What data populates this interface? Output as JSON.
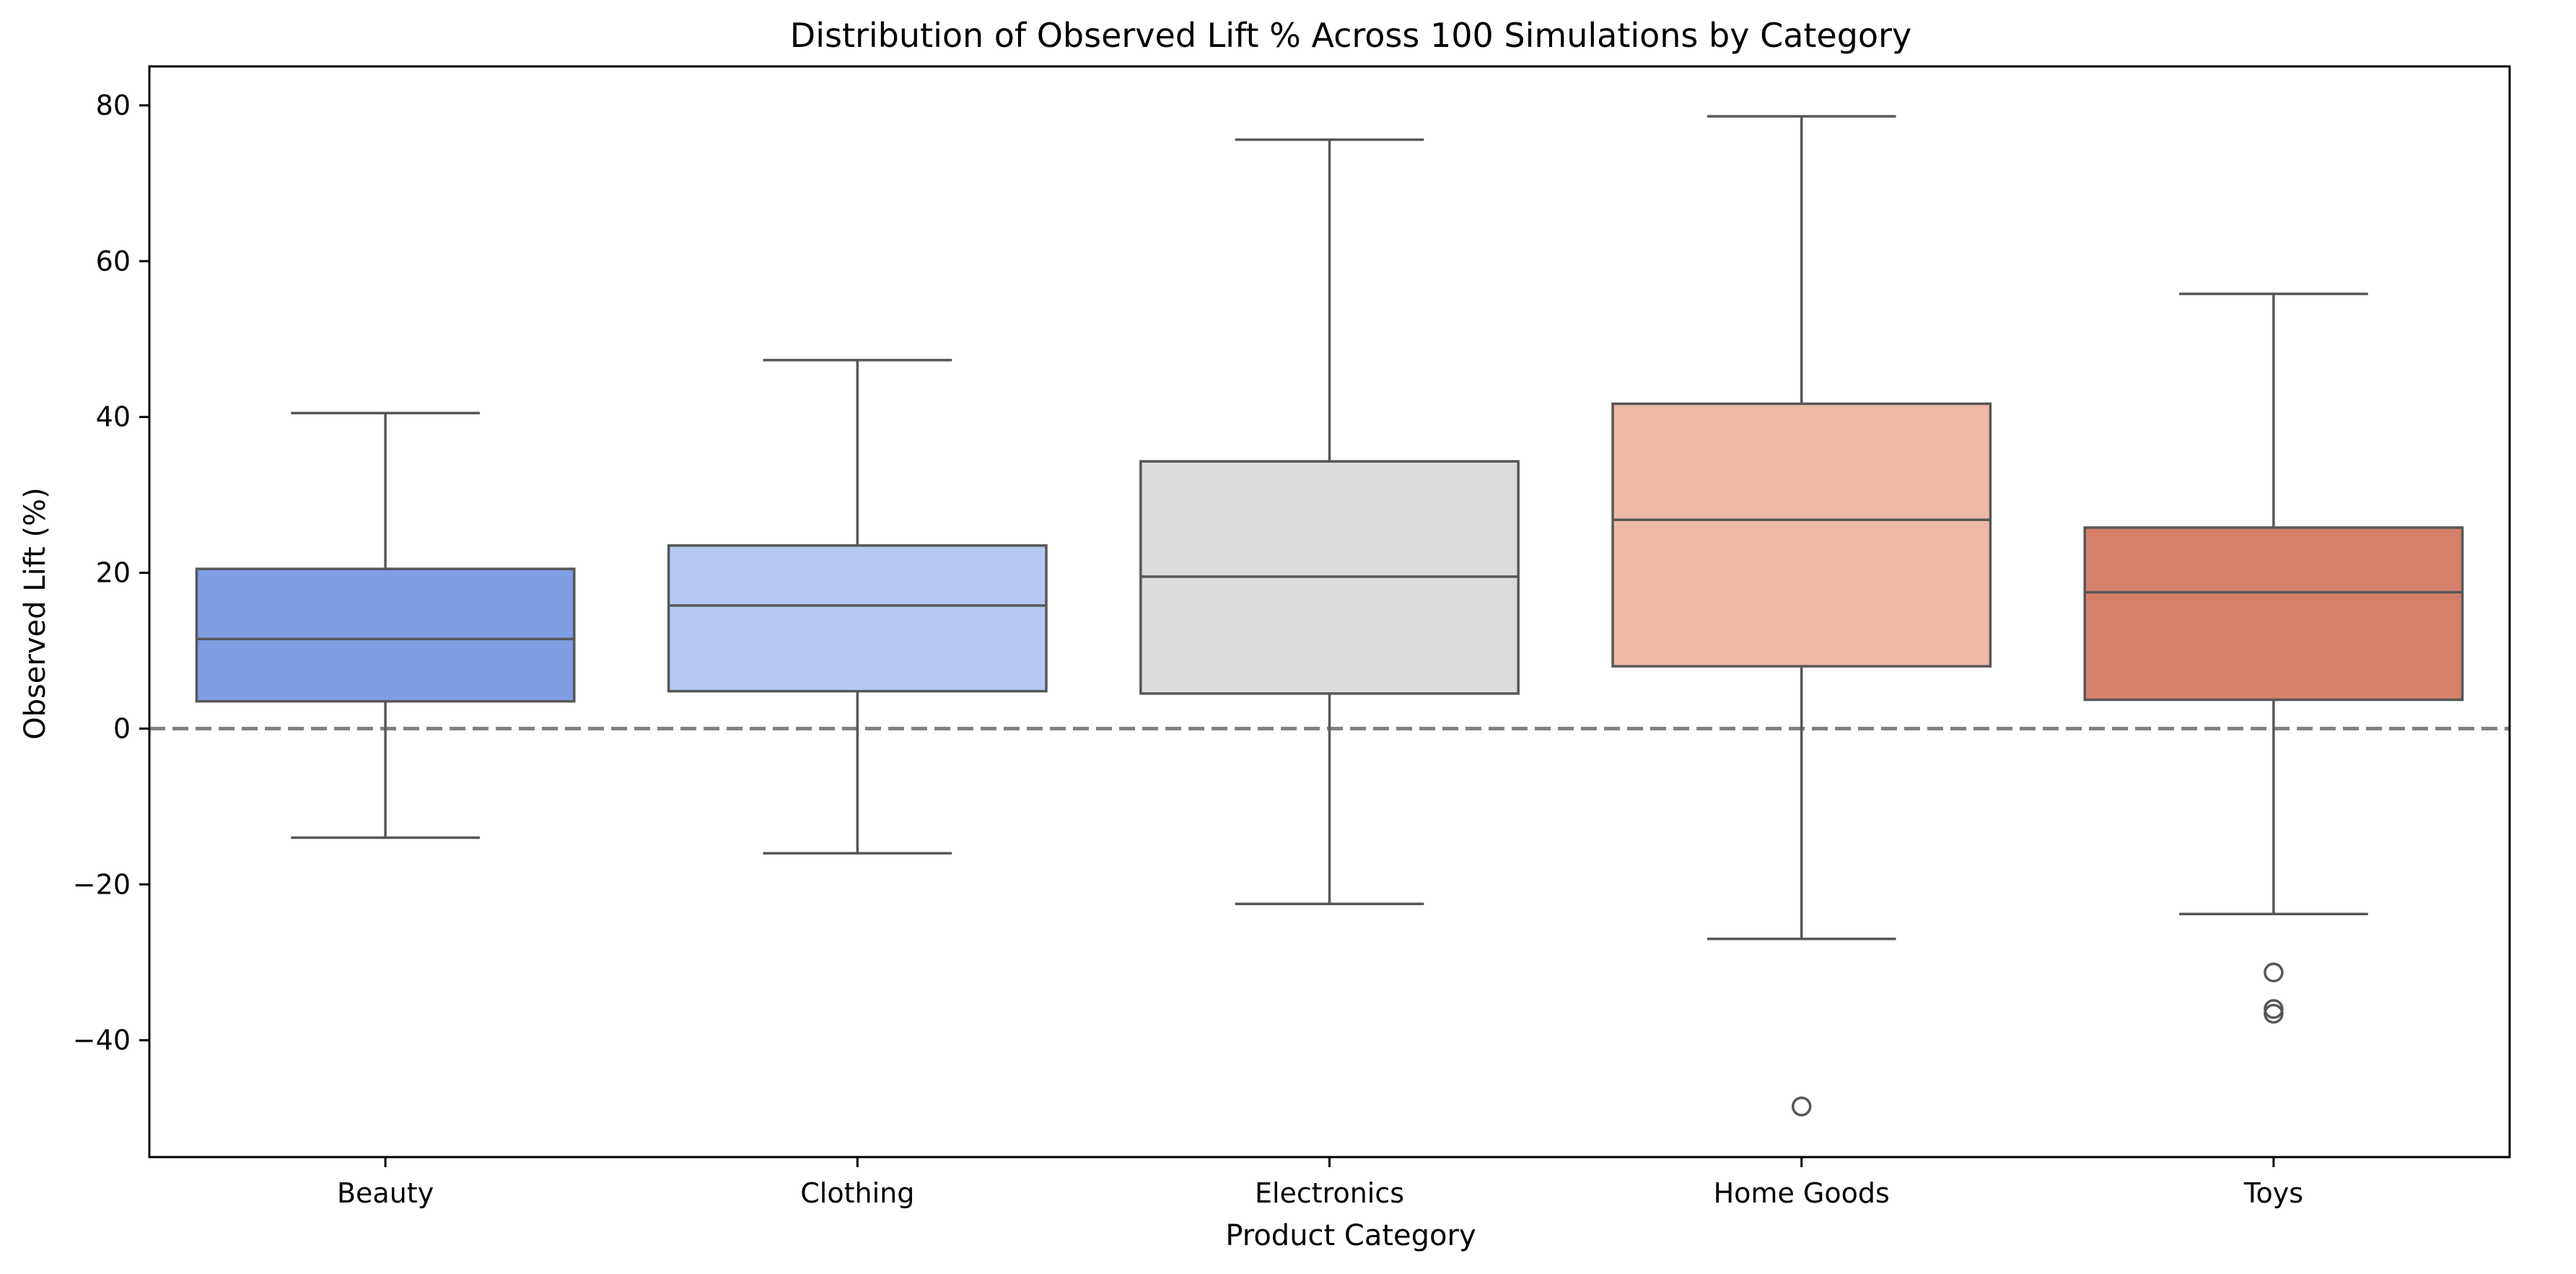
{
  "chart_data": {
    "type": "box",
    "title": "Distribution of Observed Lift % Across 100 Simulations by Category",
    "xlabel": "Product Category",
    "ylabel": "Observed Lift (%)",
    "ylim": [
      -55,
      85
    ],
    "yticks": [
      -40,
      -20,
      0,
      20,
      40,
      60,
      80
    ],
    "reference_line": {
      "y": 0,
      "style": "dashed",
      "color": "#808080"
    },
    "grid": false,
    "legend": "none",
    "categories": [
      "Beauty",
      "Clothing",
      "Electronics",
      "Home Goods",
      "Toys"
    ],
    "series": [
      {
        "category": "Beauty",
        "whisker_low": -14,
        "q1": 3.5,
        "median": 11.5,
        "q3": 20.5,
        "whisker_high": 40.5,
        "outliers": [],
        "color": "#7f9de3"
      },
      {
        "category": "Clothing",
        "whisker_low": -16,
        "q1": 4.8,
        "median": 15.8,
        "q3": 23.5,
        "whisker_high": 47.3,
        "outliers": [],
        "color": "#b5c9f3"
      },
      {
        "category": "Electronics",
        "whisker_low": -22.5,
        "q1": 4.5,
        "median": 19.5,
        "q3": 34.3,
        "whisker_high": 75.6,
        "outliers": [],
        "color": "#dcdcdc"
      },
      {
        "category": "Home Goods",
        "whisker_low": -27,
        "q1": 8,
        "median": 26.8,
        "q3": 41.7,
        "whisker_high": 78.6,
        "outliers": [
          -48.5
        ],
        "color": "#edbba5"
      },
      {
        "category": "Toys",
        "whisker_low": -23.8,
        "q1": 3.7,
        "median": 17.5,
        "q3": 25.8,
        "whisker_high": 55.8,
        "outliers": [
          -31.3,
          -36,
          -36.6
        ],
        "color": "#d6806b"
      }
    ],
    "line_color": "#575757"
  }
}
